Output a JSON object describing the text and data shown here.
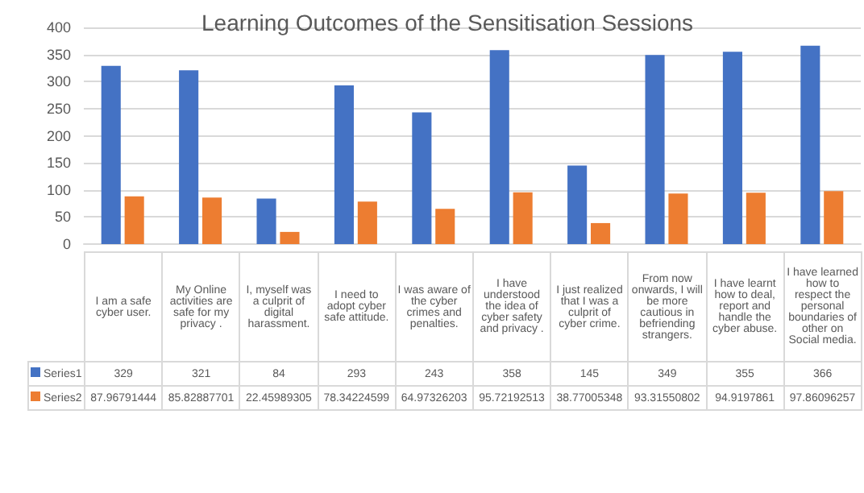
{
  "chart_data": {
    "type": "bar",
    "title": "Learning Outcomes of the Sensitisation Sessions",
    "categories": [
      "I am a safe cyber user.",
      "My Online activities are safe for my privacy .",
      "I, myself was a culprit of digital harassment.",
      "I need to adopt cyber safe attitude.",
      "I was aware of the cyber crimes and penalties.",
      "I have understood the idea of cyber safety and privacy .",
      "I just realized that I was a culprit of cyber crime.",
      "From now onwards, I will be more cautious in befriending strangers.",
      "I have learnt how to deal, report and handle the cyber abuse.",
      "I have learned how to respect the personal boundaries of other on Social media."
    ],
    "series": [
      {
        "name": "Series1",
        "color": "#4472c4",
        "values": [
          329,
          321,
          84,
          293,
          243,
          358,
          145,
          349,
          355,
          366
        ]
      },
      {
        "name": "Series2",
        "color": "#ed7d31",
        "values": [
          87.96791444,
          85.82887701,
          22.45989305,
          78.34224599,
          64.97326203,
          95.72192513,
          38.77005348,
          93.31550802,
          94.9197861,
          97.86096257
        ]
      }
    ],
    "ylim": [
      0,
      400
    ],
    "yticks": [
      0,
      50,
      100,
      150,
      200,
      250,
      300,
      350,
      400
    ],
    "grid": true,
    "data_labels": true,
    "legend": "bottom left"
  }
}
